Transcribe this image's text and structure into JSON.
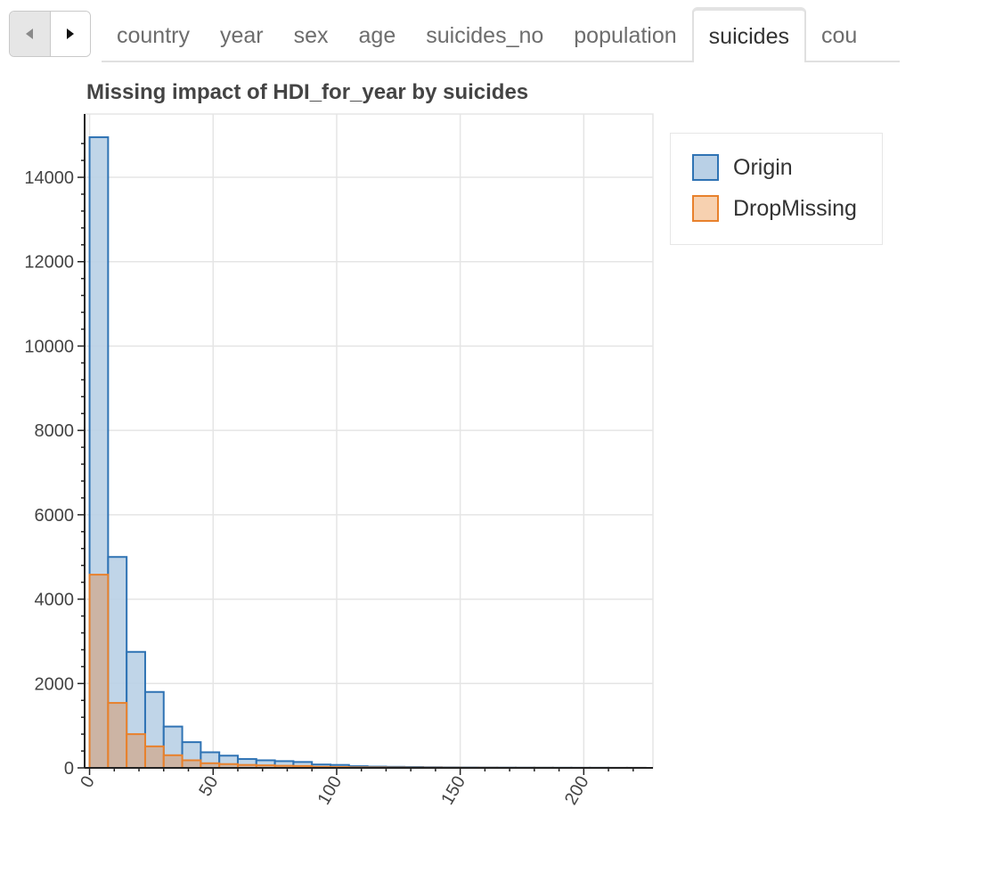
{
  "tabs": {
    "prev_icon": "caret-left-icon",
    "next_icon": "caret-right-icon",
    "items": [
      {
        "label": "country",
        "active": false
      },
      {
        "label": "year",
        "active": false
      },
      {
        "label": "sex",
        "active": false
      },
      {
        "label": "age",
        "active": false
      },
      {
        "label": "suicides_no",
        "active": false
      },
      {
        "label": "population",
        "active": false
      },
      {
        "label": "suicides",
        "active": true
      },
      {
        "label": "cou",
        "active": false
      }
    ]
  },
  "colors": {
    "origin_fill": "#b9d0e6",
    "origin_line": "#2f73b4",
    "drop_fill": "#f7d1b0",
    "drop_line": "#e8812c",
    "overlap_fill": "#cdb09c",
    "grid": "#e5e5e5",
    "axis": "#222222"
  },
  "chart_data": {
    "type": "histogram",
    "title": "Missing impact of HDI_for_year by suicides",
    "xlabel": "",
    "ylabel": "",
    "xlim": [
      -2,
      228
    ],
    "ylim": [
      0,
      15500
    ],
    "x_ticks": [
      0,
      50,
      100,
      150,
      200
    ],
    "x_tick_labels": [
      "0",
      "50",
      "100",
      "150",
      "200"
    ],
    "y_ticks": [
      0,
      2000,
      4000,
      6000,
      8000,
      10000,
      12000,
      14000
    ],
    "y_tick_labels": [
      "0",
      "2000",
      "4000",
      "6000",
      "8000",
      "10000",
      "12000",
      "14000"
    ],
    "bin_edges": [
      0,
      7.5,
      15,
      22.5,
      30,
      37.5,
      45,
      52.5,
      60,
      67.5,
      75,
      82.5,
      90,
      97.5,
      105,
      112.5,
      120,
      127.5,
      135,
      142.5,
      150,
      157.5,
      165,
      172.5,
      180,
      187.5,
      195,
      202.5,
      210,
      217.5,
      225
    ],
    "legend_position": "top-right-outside",
    "series": [
      {
        "name": "Origin",
        "values": [
          14950,
          5000,
          2750,
          1800,
          980,
          610,
          370,
          290,
          210,
          180,
          160,
          140,
          80,
          70,
          40,
          30,
          25,
          20,
          15,
          12,
          10,
          8,
          7,
          6,
          5,
          4,
          3,
          3,
          2,
          2
        ]
      },
      {
        "name": "DropMissing",
        "values": [
          4580,
          1540,
          800,
          510,
          300,
          180,
          110,
          90,
          70,
          60,
          50,
          45,
          25,
          20,
          12,
          10,
          8,
          6,
          5,
          4,
          3,
          3,
          2,
          2,
          2,
          1,
          1,
          1,
          1,
          1
        ]
      }
    ]
  }
}
